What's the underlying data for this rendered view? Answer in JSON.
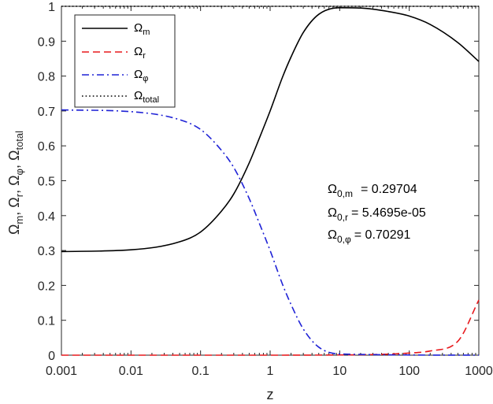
{
  "chart_data": {
    "type": "line",
    "title": "",
    "xlabel": "z",
    "ylabel": "Ω_m, Ω_r, Ω_φ, Ω_total",
    "x_scale": "log",
    "xlim": [
      0.001,
      1000
    ],
    "ylim": [
      0,
      1
    ],
    "x_ticks": [
      0.001,
      0.01,
      0.1,
      1,
      10,
      100,
      1000
    ],
    "x_tick_labels": [
      "0.001",
      "0.01",
      "0.1",
      "1",
      "10",
      "100",
      "1000"
    ],
    "y_ticks": [
      0,
      0.1,
      0.2,
      0.3,
      0.4,
      0.5,
      0.6,
      0.7,
      0.8,
      0.9,
      1
    ],
    "y_tick_labels": [
      "0",
      "0.1",
      "0.2",
      "0.3",
      "0.4",
      "0.5",
      "0.6",
      "0.7",
      "0.8",
      "0.9",
      "1"
    ],
    "legend_position": "top-left",
    "series": [
      {
        "name": "Ω_m",
        "color": "#000000",
        "style": "solid",
        "x": [
          0.001,
          0.01,
          0.05,
          0.1,
          0.2,
          0.3,
          0.5,
          0.7,
          1,
          1.5,
          2,
          3,
          5,
          10,
          20,
          50,
          100,
          200,
          500,
          1000
        ],
        "y": [
          0.297,
          0.302,
          0.325,
          0.353,
          0.413,
          0.462,
          0.551,
          0.622,
          0.7,
          0.796,
          0.855,
          0.925,
          0.977,
          0.996,
          0.995,
          0.985,
          0.972,
          0.948,
          0.896,
          0.842
        ]
      },
      {
        "name": "Ω_r",
        "color": "#e8191d",
        "style": "dashed",
        "x": [
          0.001,
          1,
          5,
          10,
          20,
          50,
          100,
          200,
          500,
          1000
        ],
        "y": [
          0.0,
          0.0,
          0.0003,
          0.0006,
          0.0012,
          0.003,
          0.006,
          0.012,
          0.04,
          0.158
        ]
      },
      {
        "name": "Ω_φ",
        "color": "#1f22d6",
        "style": "dashdot",
        "x": [
          0.001,
          0.01,
          0.05,
          0.1,
          0.2,
          0.3,
          0.5,
          0.7,
          1,
          1.5,
          2,
          3,
          5,
          10,
          1000
        ],
        "y": [
          0.703,
          0.698,
          0.675,
          0.647,
          0.587,
          0.538,
          0.449,
          0.378,
          0.3,
          0.204,
          0.145,
          0.075,
          0.023,
          0.0035,
          0.0
        ]
      },
      {
        "name": "Ω_total",
        "color": "#000000",
        "style": "dotted",
        "x": [
          0.001,
          1000
        ],
        "y": [
          1.0,
          1.0
        ]
      }
    ],
    "annotations": [
      {
        "label": "Ω_0,m",
        "value": "= 0.29704"
      },
      {
        "label": "Ω_0,r",
        "value": "= 5.4695e-05"
      },
      {
        "label": "Ω_0,φ",
        "value": "= 0.70291"
      }
    ]
  }
}
